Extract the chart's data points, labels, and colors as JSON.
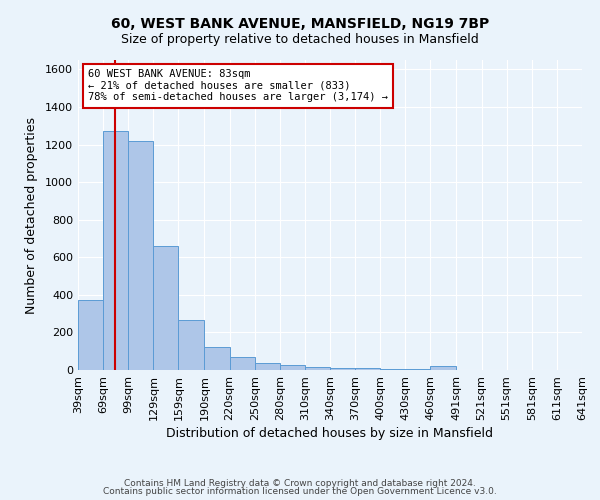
{
  "title1": "60, WEST BANK AVENUE, MANSFIELD, NG19 7BP",
  "title2": "Size of property relative to detached houses in Mansfield",
  "xlabel": "Distribution of detached houses by size in Mansfield",
  "ylabel": "Number of detached properties",
  "footer1": "Contains HM Land Registry data © Crown copyright and database right 2024.",
  "footer2": "Contains public sector information licensed under the Open Government Licence v3.0.",
  "annotation_line1": "60 WEST BANK AVENUE: 83sqm",
  "annotation_line2": "← 21% of detached houses are smaller (833)",
  "annotation_line3": "78% of semi-detached houses are larger (3,174) →",
  "bin_edges": [
    39,
    69,
    99,
    129,
    159,
    190,
    220,
    250,
    280,
    310,
    340,
    370,
    400,
    430,
    460,
    491,
    521,
    551,
    581,
    611,
    641
  ],
  "bin_counts": [
    370,
    1270,
    1220,
    660,
    265,
    125,
    70,
    38,
    25,
    18,
    12,
    8,
    5,
    3,
    20,
    0,
    0,
    0,
    0,
    0
  ],
  "bar_facecolor": "#aec6e8",
  "bar_edgecolor": "#5b9bd5",
  "vline_color": "#cc0000",
  "vline_x": 83,
  "ylim": [
    0,
    1650
  ],
  "yticks": [
    0,
    200,
    400,
    600,
    800,
    1000,
    1200,
    1400,
    1600
  ],
  "bg_color": "#eaf3fb",
  "grid_color": "#ffffff",
  "annotation_box_color": "#ffffff",
  "annotation_box_edgecolor": "#cc0000"
}
